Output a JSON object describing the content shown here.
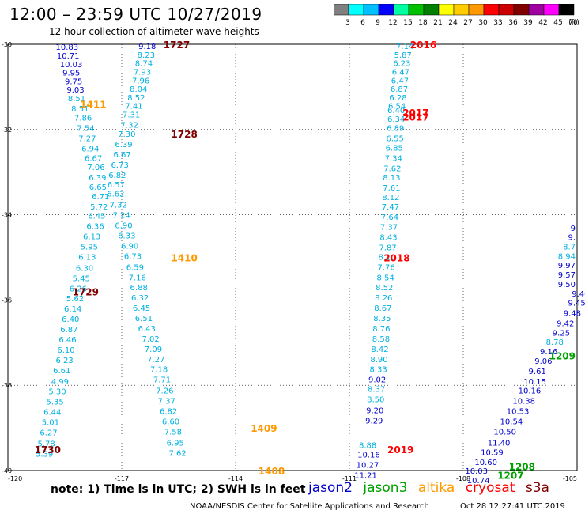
{
  "header": {
    "title": "12:00 – 23:59 UTC 10/27/2019",
    "subtitle": "12 hour collection of altimeter wave heights"
  },
  "colorscale": {
    "labels": [
      "3",
      "6",
      "9",
      "12",
      "15",
      "18",
      "21",
      "24",
      "27",
      "30",
      "33",
      "36",
      "39",
      "42",
      "45",
      "70"
    ],
    "unit": "(ft)",
    "colors": [
      "#808080",
      "#00ffff",
      "#00c0ff",
      "#0000ff",
      "#00ffa0",
      "#00c000",
      "#008000",
      "#ffff00",
      "#ffcc00",
      "#ff9900",
      "#ff0000",
      "#cc0000",
      "#800000",
      "#a000a0",
      "#ff00ff",
      "#000000"
    ]
  },
  "axes": {
    "lat_labels": [
      "-30",
      "-32",
      "-34",
      "-36",
      "-38",
      "-40"
    ],
    "lon_labels": [
      "-120",
      "-117",
      "-114",
      "-111",
      "-108",
      "-105"
    ],
    "lon_range": [
      -120,
      -105
    ],
    "lat_range": [
      -30,
      -40
    ]
  },
  "colors": {
    "jason2": "#0000cc",
    "jason3": "#00a000",
    "altika": "#ff9900",
    "cryosat": "#ff0000",
    "s3a": "#800000",
    "swh_light": "#00b0e0"
  },
  "track_times": [
    {
      "text": "1727",
      "sat": "s3a",
      "lon": -115.9,
      "lat": -30.0
    },
    {
      "text": "1411",
      "sat": "altika",
      "lon": -118.1,
      "lat": -31.4
    },
    {
      "text": "1728",
      "sat": "s3a",
      "lon": -115.7,
      "lat": -32.1
    },
    {
      "text": "1410",
      "sat": "altika",
      "lon": -115.7,
      "lat": -35.0
    },
    {
      "text": "1729",
      "sat": "s3a",
      "lon": -118.3,
      "lat": -35.8
    },
    {
      "text": "1409",
      "sat": "altika",
      "lon": -113.6,
      "lat": -39.0
    },
    {
      "text": "1730",
      "sat": "s3a",
      "lon": -119.3,
      "lat": -39.5
    },
    {
      "text": "1408",
      "sat": "altika",
      "lon": -113.4,
      "lat": -40.0
    },
    {
      "text": "2016",
      "sat": "cryosat",
      "lon": -109.4,
      "lat": -30.0
    },
    {
      "text": "2017",
      "sat": "cryosat",
      "lon": -109.6,
      "lat": -31.6
    },
    {
      "text": "2017",
      "sat": "cryosat",
      "lon": -109.6,
      "lat": -31.7
    },
    {
      "text": "2018",
      "sat": "cryosat",
      "lon": -110.1,
      "lat": -35.0
    },
    {
      "text": "2019",
      "sat": "cryosat",
      "lon": -110.0,
      "lat": -39.5
    },
    {
      "text": "1208",
      "sat": "jason3",
      "lon": -106.8,
      "lat": -39.9
    },
    {
      "text": "1207",
      "sat": "jason3",
      "lon": -107.1,
      "lat": -40.1
    },
    {
      "text": "1209",
      "sat": "jason3",
      "lon": -104.7,
      "lat": -37.3
    }
  ],
  "wave_labels": [
    {
      "v": "10.83",
      "c": "d",
      "lon": -118.74,
      "lat": -30.06
    },
    {
      "v": "10.71",
      "c": "d",
      "lon": -118.71,
      "lat": -30.26
    },
    {
      "v": "10.03",
      "c": "d",
      "lon": -118.63,
      "lat": -30.46
    },
    {
      "v": "9.95",
      "c": "d",
      "lon": -118.56,
      "lat": -30.66
    },
    {
      "v": "9.75",
      "c": "d",
      "lon": -118.5,
      "lat": -30.86
    },
    {
      "v": "9.03",
      "c": "d",
      "lon": -118.45,
      "lat": -31.06
    },
    {
      "v": "8.51",
      "c": "l",
      "lon": -118.42,
      "lat": -31.26
    },
    {
      "v": "8.51",
      "c": "l",
      "lon": -118.33,
      "lat": -31.5
    },
    {
      "v": "7.86",
      "c": "l",
      "lon": -118.25,
      "lat": -31.72
    },
    {
      "v": "7.54",
      "c": "l",
      "lon": -118.18,
      "lat": -31.96
    },
    {
      "v": "7.27",
      "c": "l",
      "lon": -118.14,
      "lat": -32.2
    },
    {
      "v": "6.94",
      "c": "l",
      "lon": -118.06,
      "lat": -32.44
    },
    {
      "v": "6.67",
      "c": "l",
      "lon": -117.98,
      "lat": -32.66
    },
    {
      "v": "7.06",
      "c": "l",
      "lon": -117.91,
      "lat": -32.88
    },
    {
      "v": "6.39",
      "c": "l",
      "lon": -117.87,
      "lat": -33.12
    },
    {
      "v": "6.65",
      "c": "l",
      "lon": -117.86,
      "lat": -33.34
    },
    {
      "v": "6.71",
      "c": "l",
      "lon": -117.79,
      "lat": -33.56
    },
    {
      "v": "5.72",
      "c": "l",
      "lon": -117.83,
      "lat": -33.8
    },
    {
      "v": "6.45",
      "c": "l",
      "lon": -117.89,
      "lat": -34.02
    },
    {
      "v": "6.36",
      "c": "l",
      "lon": -117.93,
      "lat": -34.26
    },
    {
      "v": "6.13",
      "c": "l",
      "lon": -118.02,
      "lat": -34.5
    },
    {
      "v": "5.95",
      "c": "l",
      "lon": -118.09,
      "lat": -34.74
    },
    {
      "v": "6.13",
      "c": "l",
      "lon": -118.14,
      "lat": -34.98
    },
    {
      "v": "6.30",
      "c": "l",
      "lon": -118.21,
      "lat": -35.24
    },
    {
      "v": "5.45",
      "c": "l",
      "lon": -118.3,
      "lat": -35.48
    },
    {
      "v": "6.26",
      "c": "l",
      "lon": -118.38,
      "lat": -35.72
    },
    {
      "v": "5.62",
      "c": "l",
      "lon": -118.46,
      "lat": -35.96
    },
    {
      "v": "6.14",
      "c": "l",
      "lon": -118.52,
      "lat": -36.2
    },
    {
      "v": "6.40",
      "c": "l",
      "lon": -118.58,
      "lat": -36.44
    },
    {
      "v": "6.87",
      "c": "l",
      "lon": -118.62,
      "lat": -36.68
    },
    {
      "v": "6.46",
      "c": "l",
      "lon": -118.66,
      "lat": -36.92
    },
    {
      "v": "6.10",
      "c": "l",
      "lon": -118.7,
      "lat": -37.16
    },
    {
      "v": "6.23",
      "c": "l",
      "lon": -118.74,
      "lat": -37.4
    },
    {
      "v": "6.61",
      "c": "l",
      "lon": -118.81,
      "lat": -37.64
    },
    {
      "v": "4.99",
      "c": "l",
      "lon": -118.86,
      "lat": -37.9
    },
    {
      "v": "5.30",
      "c": "l",
      "lon": -118.93,
      "lat": -38.14
    },
    {
      "v": "5.35",
      "c": "l",
      "lon": -118.99,
      "lat": -38.38
    },
    {
      "v": "6.44",
      "c": "l",
      "lon": -119.06,
      "lat": -38.62
    },
    {
      "v": "5.01",
      "c": "l",
      "lon": -119.11,
      "lat": -38.86
    },
    {
      "v": "6.27",
      "c": "l",
      "lon": -119.16,
      "lat": -39.1
    },
    {
      "v": "5.78",
      "c": "l",
      "lon": -119.22,
      "lat": -39.36
    },
    {
      "v": "5.39",
      "c": "l",
      "lon": -119.27,
      "lat": -39.6
    },
    {
      "v": "9.18",
      "c": "d",
      "lon": -116.56,
      "lat": -30.04
    },
    {
      "v": "8.23",
      "c": "l",
      "lon": -116.59,
      "lat": -30.24
    },
    {
      "v": "8.74",
      "c": "l",
      "lon": -116.65,
      "lat": -30.44
    },
    {
      "v": "7.93",
      "c": "l",
      "lon": -116.69,
      "lat": -30.64
    },
    {
      "v": "7.96",
      "c": "l",
      "lon": -116.73,
      "lat": -30.84
    },
    {
      "v": "8.04",
      "c": "l",
      "lon": -116.79,
      "lat": -31.04
    },
    {
      "v": "8.52",
      "c": "l",
      "lon": -116.85,
      "lat": -31.24
    },
    {
      "v": "7.41",
      "c": "l",
      "lon": -116.91,
      "lat": -31.44
    },
    {
      "v": "7.31",
      "c": "l",
      "lon": -116.98,
      "lat": -31.64
    },
    {
      "v": "7.32",
      "c": "l",
      "lon": -117.03,
      "lat": -31.88
    },
    {
      "v": "7.30",
      "c": "l",
      "lon": -117.1,
      "lat": -32.1
    },
    {
      "v": "6.39",
      "c": "l",
      "lon": -117.18,
      "lat": -32.34
    },
    {
      "v": "6.67",
      "c": "l",
      "lon": -117.22,
      "lat": -32.58
    },
    {
      "v": "6.73",
      "c": "l",
      "lon": -117.28,
      "lat": -32.82
    },
    {
      "v": "6.82",
      "c": "l",
      "lon": -117.35,
      "lat": -33.06
    },
    {
      "v": "6.57",
      "c": "l",
      "lon": -117.38,
      "lat": -33.28
    },
    {
      "v": "6.62",
      "c": "l",
      "lon": -117.39,
      "lat": -33.5
    },
    {
      "v": "7.32",
      "c": "l",
      "lon": -117.32,
      "lat": -33.76
    },
    {
      "v": "7.24",
      "c": "l",
      "lon": -117.24,
      "lat": -34.0
    },
    {
      "v": "6.90",
      "c": "l",
      "lon": -117.18,
      "lat": -34.24
    },
    {
      "v": "6.33",
      "c": "l",
      "lon": -117.1,
      "lat": -34.48
    },
    {
      "v": "6.90",
      "c": "l",
      "lon": -117.02,
      "lat": -34.72
    },
    {
      "v": "6.73",
      "c": "l",
      "lon": -116.94,
      "lat": -34.96
    },
    {
      "v": "6.59",
      "c": "l",
      "lon": -116.88,
      "lat": -35.22
    },
    {
      "v": "7.16",
      "c": "l",
      "lon": -116.82,
      "lat": -35.46
    },
    {
      "v": "6.88",
      "c": "l",
      "lon": -116.78,
      "lat": -35.7
    },
    {
      "v": "6.32",
      "c": "l",
      "lon": -116.75,
      "lat": -35.94
    },
    {
      "v": "6.45",
      "c": "l",
      "lon": -116.71,
      "lat": -36.18
    },
    {
      "v": "6.51",
      "c": "l",
      "lon": -116.65,
      "lat": -36.42
    },
    {
      "v": "6.43",
      "c": "l",
      "lon": -116.57,
      "lat": -36.66
    },
    {
      "v": "7.02",
      "c": "l",
      "lon": -116.47,
      "lat": -36.9
    },
    {
      "v": "7.09",
      "c": "l",
      "lon": -116.4,
      "lat": -37.14
    },
    {
      "v": "7.27",
      "c": "l",
      "lon": -116.33,
      "lat": -37.38
    },
    {
      "v": "7.18",
      "c": "l",
      "lon": -116.25,
      "lat": -37.62
    },
    {
      "v": "7.71",
      "c": "l",
      "lon": -116.17,
      "lat": -37.86
    },
    {
      "v": "7.26",
      "c": "l",
      "lon": -116.1,
      "lat": -38.12
    },
    {
      "v": "7.37",
      "c": "l",
      "lon": -116.05,
      "lat": -38.36
    },
    {
      "v": "6.82",
      "c": "l",
      "lon": -116.0,
      "lat": -38.6
    },
    {
      "v": "6.60",
      "c": "l",
      "lon": -115.94,
      "lat": -38.84
    },
    {
      "v": "7.58",
      "c": "l",
      "lon": -115.88,
      "lat": -39.08
    },
    {
      "v": "6.95",
      "c": "l",
      "lon": -115.82,
      "lat": -39.34
    },
    {
      "v": "7.62",
      "c": "l",
      "lon": -115.76,
      "lat": -39.58
    },
    {
      "v": "7.14",
      "c": "l",
      "lon": -109.77,
      "lat": -30.04
    },
    {
      "v": "5.87",
      "c": "l",
      "lon": -109.82,
      "lat": -30.24
    },
    {
      "v": "6.23",
      "c": "l",
      "lon": -109.85,
      "lat": -30.44
    },
    {
      "v": "6.47",
      "c": "l",
      "lon": -109.88,
      "lat": -30.64
    },
    {
      "v": "6.47",
      "c": "l",
      "lon": -109.9,
      "lat": -30.84
    },
    {
      "v": "6.87",
      "c": "l",
      "lon": -109.92,
      "lat": -31.04
    },
    {
      "v": "6.28",
      "c": "l",
      "lon": -109.95,
      "lat": -31.24
    },
    {
      "v": "6.54",
      "c": "l",
      "lon": -109.98,
      "lat": -31.44
    },
    {
      "v": "6.40",
      "c": "l",
      "lon": -110.0,
      "lat": -31.54
    },
    {
      "v": "6.34",
      "c": "l",
      "lon": -110.0,
      "lat": -31.74
    },
    {
      "v": "6.89",
      "c": "l",
      "lon": -110.02,
      "lat": -31.96
    },
    {
      "v": "6.55",
      "c": "l",
      "lon": -110.03,
      "lat": -32.2
    },
    {
      "v": "6.85",
      "c": "l",
      "lon": -110.05,
      "lat": -32.42
    },
    {
      "v": "7.34",
      "c": "l",
      "lon": -110.07,
      "lat": -32.66
    },
    {
      "v": "7.62",
      "c": "l",
      "lon": -110.1,
      "lat": -32.9
    },
    {
      "v": "8.13",
      "c": "l",
      "lon": -110.12,
      "lat": -33.12
    },
    {
      "v": "7.61",
      "c": "l",
      "lon": -110.12,
      "lat": -33.36
    },
    {
      "v": "8.12",
      "c": "l",
      "lon": -110.14,
      "lat": -33.58
    },
    {
      "v": "7.47",
      "c": "l",
      "lon": -110.15,
      "lat": -33.8
    },
    {
      "v": "7.64",
      "c": "l",
      "lon": -110.17,
      "lat": -34.04
    },
    {
      "v": "7.37",
      "c": "l",
      "lon": -110.19,
      "lat": -34.28
    },
    {
      "v": "8.43",
      "c": "l",
      "lon": -110.2,
      "lat": -34.52
    },
    {
      "v": "7.87",
      "c": "l",
      "lon": -110.22,
      "lat": -34.76
    },
    {
      "v": "8.10",
      "c": "l",
      "lon": -110.24,
      "lat": -34.98
    },
    {
      "v": "7.76",
      "c": "l",
      "lon": -110.26,
      "lat": -35.22
    },
    {
      "v": "8.54",
      "c": "l",
      "lon": -110.28,
      "lat": -35.46
    },
    {
      "v": "8.52",
      "c": "l",
      "lon": -110.31,
      "lat": -35.7
    },
    {
      "v": "8.26",
      "c": "l",
      "lon": -110.33,
      "lat": -35.94
    },
    {
      "v": "8.67",
      "c": "l",
      "lon": -110.35,
      "lat": -36.18
    },
    {
      "v": "8.35",
      "c": "l",
      "lon": -110.37,
      "lat": -36.42
    },
    {
      "v": "8.76",
      "c": "l",
      "lon": -110.39,
      "lat": -36.66
    },
    {
      "v": "8.58",
      "c": "l",
      "lon": -110.4,
      "lat": -36.9
    },
    {
      "v": "8.42",
      "c": "l",
      "lon": -110.43,
      "lat": -37.14
    },
    {
      "v": "8.90",
      "c": "l",
      "lon": -110.45,
      "lat": -37.38
    },
    {
      "v": "8.33",
      "c": "l",
      "lon": -110.47,
      "lat": -37.62
    },
    {
      "v": "9.02",
      "c": "d",
      "lon": -110.5,
      "lat": -37.86
    },
    {
      "v": "8.37",
      "c": "l",
      "lon": -110.52,
      "lat": -38.08
    },
    {
      "v": "8.50",
      "c": "l",
      "lon": -110.54,
      "lat": -38.32
    },
    {
      "v": "9.20",
      "c": "d",
      "lon": -110.56,
      "lat": -38.58
    },
    {
      "v": "9.29",
      "c": "d",
      "lon": -110.58,
      "lat": -38.82
    },
    {
      "v": "8.88",
      "c": "l",
      "lon": -110.75,
      "lat": -39.4
    },
    {
      "v": "10.16",
      "c": "d",
      "lon": -110.79,
      "lat": -39.62
    },
    {
      "v": "10.27",
      "c": "d",
      "lon": -110.82,
      "lat": -39.86
    },
    {
      "v": "11.21",
      "c": "d",
      "lon": -110.87,
      "lat": -40.1
    },
    {
      "v": "10.74",
      "c": "d",
      "lon": -107.9,
      "lat": -40.22
    },
    {
      "v": "10.03",
      "c": "d",
      "lon": -107.95,
      "lat": -40.0
    },
    {
      "v": "10.60",
      "c": "d",
      "lon": -107.7,
      "lat": -39.8
    },
    {
      "v": "10.59",
      "c": "d",
      "lon": -107.54,
      "lat": -39.56
    },
    {
      "v": "11.40",
      "c": "d",
      "lon": -107.36,
      "lat": -39.34
    },
    {
      "v": "10.50",
      "c": "d",
      "lon": -107.2,
      "lat": -39.08
    },
    {
      "v": "10.54",
      "c": "d",
      "lon": -107.03,
      "lat": -38.84
    },
    {
      "v": "10.53",
      "c": "d",
      "lon": -106.86,
      "lat": -38.6
    },
    {
      "v": "10.38",
      "c": "d",
      "lon": -106.7,
      "lat": -38.36
    },
    {
      "v": "10.16",
      "c": "d",
      "lon": -106.55,
      "lat": -38.12
    },
    {
      "v": "10.15",
      "c": "d",
      "lon": -106.41,
      "lat": -37.9
    },
    {
      "v": "9.61",
      "c": "d",
      "lon": -106.28,
      "lat": -37.66
    },
    {
      "v": "9.06",
      "c": "d",
      "lon": -106.12,
      "lat": -37.42
    },
    {
      "v": "9.16",
      "c": "d",
      "lon": -105.98,
      "lat": -37.2
    },
    {
      "v": "8.78",
      "c": "l",
      "lon": -105.82,
      "lat": -36.98
    },
    {
      "v": "9.25",
      "c": "d",
      "lon": -105.65,
      "lat": -36.76
    },
    {
      "v": "9.42",
      "c": "d",
      "lon": -105.54,
      "lat": -36.54
    },
    {
      "v": "9.48",
      "c": "d",
      "lon": -105.36,
      "lat": -36.3
    },
    {
      "v": "9.45",
      "c": "d",
      "lon": -105.24,
      "lat": -36.06
    },
    {
      "v": "9.40",
      "c": "d",
      "lon": -105.14,
      "lat": -35.84
    },
    {
      "v": "9.50",
      "c": "d",
      "lon": -105.0,
      "lat": -35.62
    },
    {
      "v": "9.57",
      "c": "d",
      "lon": -104.88,
      "lat": -35.4
    },
    {
      "v": "9.97",
      "c": "d",
      "lon": -104.75,
      "lat": -35.18
    },
    {
      "v": "8.94",
      "c": "l",
      "lon": -104.62,
      "lat": -34.96
    },
    {
      "v": "8.7",
      "c": "l",
      "lon": -104.48,
      "lat": -34.74
    },
    {
      "v": "9.",
      "c": "d",
      "lon": -104.4,
      "lat": -34.52
    },
    {
      "v": "9",
      "c": "d",
      "lon": -104.3,
      "lat": -34.3
    }
  ],
  "footer": {
    "note": "note: 1) Time is in UTC; 2) SWH is in feet",
    "legend": [
      "jason2",
      "jason3",
      "altika",
      "cryosat",
      "s3a"
    ],
    "credit": "NOAA/NESDIS Center for Satellite Applications and Research",
    "timestamp": "Oct 28 12:27:41 UTC 2019"
  }
}
